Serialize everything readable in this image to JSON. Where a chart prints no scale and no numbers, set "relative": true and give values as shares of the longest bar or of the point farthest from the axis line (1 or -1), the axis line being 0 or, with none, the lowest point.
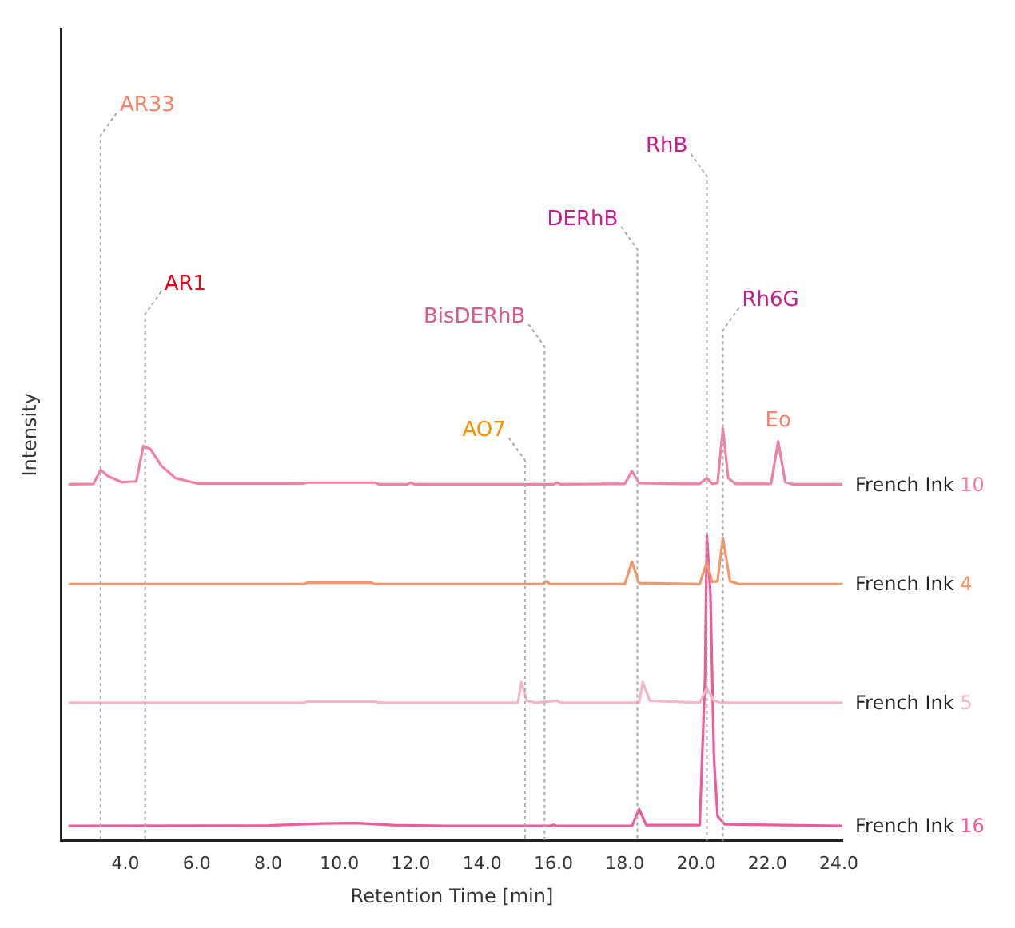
{
  "chart_data": {
    "type": "line",
    "relative": true,
    "xlabel": "Retention Time [min]",
    "ylabel": "Intensity",
    "xlim": [
      2.2,
      24.1
    ],
    "xticks": [
      {
        "value": 4,
        "label": "4.0"
      },
      {
        "value": 6,
        "label": "6.0"
      },
      {
        "value": 8,
        "label": "8.0"
      },
      {
        "value": 10,
        "label": "10.0"
      },
      {
        "value": 12,
        "label": "12.0"
      },
      {
        "value": 14,
        "label": "14.0"
      },
      {
        "value": 16,
        "label": "16.0"
      },
      {
        "value": 18,
        "label": "18.0"
      },
      {
        "value": 20,
        "label": "20.0"
      },
      {
        "value": 22,
        "label": "22.0"
      },
      {
        "value": 24,
        "label": "24.0"
      }
    ],
    "grid": false,
    "legend": false,
    "marker": "none",
    "line_style": "solid",
    "series": [
      {
        "name": "French Ink 10",
        "color": "#f27fa5",
        "x": [
          2.4,
          3.1,
          3.3,
          3.5,
          3.9,
          4.3,
          4.5,
          4.7,
          5.0,
          5.4,
          6.0,
          9.0,
          9.1,
          11.0,
          11.1,
          11.9,
          12.0,
          12.1,
          16.0,
          16.1,
          16.2,
          18.0,
          18.2,
          18.4,
          19.6,
          20.1,
          20.3,
          20.45,
          20.6,
          20.75,
          20.9,
          21.1,
          22.1,
          22.3,
          22.5,
          22.7,
          24.1
        ],
        "values": [
          0.865,
          0.866,
          0.9,
          0.885,
          0.87,
          0.872,
          0.958,
          0.95,
          0.91,
          0.88,
          0.867,
          0.867,
          0.869,
          0.869,
          0.865,
          0.865,
          0.869,
          0.865,
          0.865,
          0.869,
          0.865,
          0.866,
          0.897,
          0.868,
          0.866,
          0.866,
          0.88,
          0.866,
          0.868,
          1.0,
          0.88,
          0.866,
          0.866,
          0.969,
          0.87,
          0.865,
          0.865
        ]
      },
      {
        "name": "French Ink 4",
        "color": "#f4956a",
        "x": [
          2.4,
          9.0,
          9.1,
          10.9,
          11.0,
          15.7,
          15.8,
          15.9,
          18.0,
          18.2,
          18.4,
          20.1,
          20.3,
          20.45,
          20.6,
          20.75,
          20.95,
          21.2,
          24.1
        ],
        "values": [
          0.623,
          0.623,
          0.626,
          0.626,
          0.623,
          0.623,
          0.63,
          0.623,
          0.623,
          0.677,
          0.625,
          0.623,
          0.677,
          0.628,
          0.63,
          0.735,
          0.63,
          0.623,
          0.623
        ]
      },
      {
        "name": "French Ink 5",
        "color": "#f8b4c8",
        "x": [
          2.4,
          9.0,
          9.1,
          11.0,
          11.1,
          15.0,
          15.1,
          15.25,
          15.5,
          16.1,
          16.2,
          18.4,
          18.5,
          18.7,
          20.1,
          20.3,
          20.5,
          20.7,
          24.1
        ],
        "values": [
          0.335,
          0.335,
          0.338,
          0.338,
          0.335,
          0.335,
          0.385,
          0.34,
          0.335,
          0.34,
          0.335,
          0.335,
          0.385,
          0.34,
          0.335,
          0.37,
          0.34,
          0.335,
          0.335
        ]
      },
      {
        "name": "French Ink 16",
        "color": "#ee5a9c",
        "x": [
          2.4,
          8.0,
          9.5,
          10.5,
          11.5,
          13.0,
          15.9,
          16.0,
          16.1,
          18.2,
          18.4,
          18.6,
          20.1,
          20.25,
          20.3,
          20.4,
          20.5,
          20.6,
          20.8,
          24.1
        ],
        "values": [
          0.036,
          0.037,
          0.042,
          0.043,
          0.038,
          0.036,
          0.036,
          0.039,
          0.036,
          0.036,
          0.077,
          0.038,
          0.038,
          0.4,
          0.742,
          0.6,
          0.2,
          0.06,
          0.04,
          0.036
        ]
      }
    ],
    "ref_lines": [
      {
        "axis": "x",
        "value": 3.3,
        "label": "AR33",
        "color": "#aaaaaa",
        "line_style": "dotted"
      },
      {
        "axis": "x",
        "value": 4.55,
        "label": "AR1",
        "color": "#aaaaaa",
        "line_style": "dotted"
      },
      {
        "axis": "x",
        "value": 15.75,
        "label": "BisDERhB",
        "color": "#aaaaaa",
        "line_style": "dotted"
      },
      {
        "axis": "x",
        "value": 15.2,
        "label": "AO7",
        "color": "#aaaaaa",
        "line_style": "dotted"
      },
      {
        "axis": "x",
        "value": 18.35,
        "label": "DERhB",
        "color": "#aaaaaa",
        "line_style": "dotted"
      },
      {
        "axis": "x",
        "value": 20.3,
        "label": "RhB",
        "color": "#aaaaaa",
        "line_style": "dotted"
      },
      {
        "axis": "x",
        "value": 20.75,
        "label": "Rh6G",
        "color": "#aaaaaa",
        "line_style": "dotted"
      }
    ],
    "annotations": [
      {
        "text": "Eo",
        "x": 22.3,
        "y": 0.969
      }
    ]
  }
}
